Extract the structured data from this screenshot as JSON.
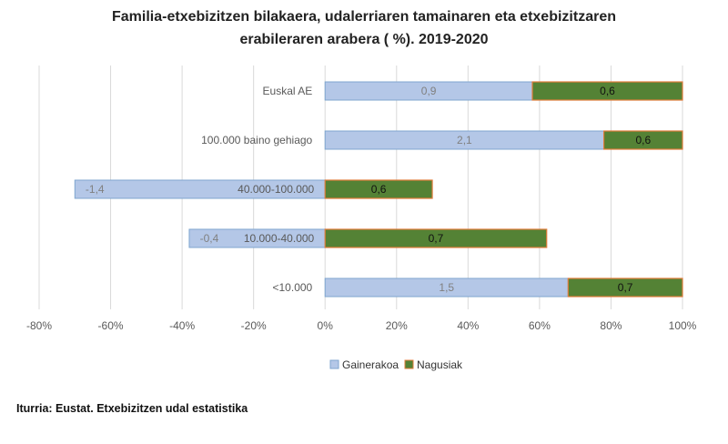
{
  "title_line1": "Familia-etxebizitzen bilakaera, udalerriaren tamainaren eta etxebizitzaren",
  "title_line2": "erabileraren arabera ( %). 2019-2020",
  "source": "Iturria: Eustat. Etxebizitzen udal estatistika",
  "chart_data": {
    "type": "bar",
    "orientation": "horizontal",
    "stacked": "percent",
    "title": "Familia-etxebizitzen bilakaera, udalerriaren tamainaren eta etxebizitzaren erabileraren arabera ( %). 2019-2020",
    "categories": [
      "Euskal AE",
      "100.000 baino gehiago",
      "40.000-100.000",
      "10.000-40.000",
      "<10.000"
    ],
    "series": [
      {
        "name": "Gainerakoa",
        "values": [
          0.9,
          2.1,
          -1.4,
          -0.4,
          1.5
        ],
        "labels": [
          "0,9",
          "2,1",
          "-1,4",
          "-0,4",
          "1,5"
        ],
        "share_percent": [
          58,
          78,
          -70,
          -38,
          68
        ],
        "color": "#b4c7e7",
        "border": "#7fa6cf"
      },
      {
        "name": "Nagusiak",
        "values": [
          0.6,
          0.6,
          0.6,
          0.7,
          0.7
        ],
        "labels": [
          "0,6",
          "0,6",
          "0,6",
          "0,7",
          "0,7"
        ],
        "share_percent": [
          42,
          22,
          30,
          62,
          32
        ],
        "color": "#548235",
        "border": "#e07b39"
      }
    ],
    "xlim": [
      -80,
      100
    ],
    "xticks": [
      -80,
      -60,
      -40,
      -20,
      0,
      20,
      40,
      60,
      80,
      100
    ],
    "xtick_labels": [
      "-80%",
      "-60%",
      "-40%",
      "-20%",
      "0%",
      "20%",
      "40%",
      "60%",
      "80%",
      "100%"
    ],
    "legend": "bottom",
    "grid": true
  }
}
